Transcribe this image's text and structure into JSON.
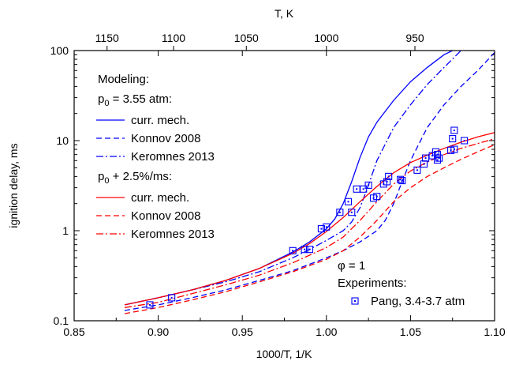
{
  "chart_data": {
    "type": "line",
    "xlabel": "1000/T, 1/K",
    "ylabel": "ignition delay, ms",
    "top_axis_label": "T, K",
    "xlim": [
      0.85,
      1.1
    ],
    "ylim": [
      0.1,
      100
    ],
    "y_scale": "log",
    "x_ticks": [
      "0.85",
      "0.90",
      "0.95",
      "1.00",
      "1.05",
      "1.10"
    ],
    "y_ticks": [
      "0.1",
      "1",
      "10",
      "100"
    ],
    "top_ticks": [
      "1150",
      "1100",
      "1050",
      "1000",
      "950"
    ],
    "grid": false,
    "legend": {
      "placement": "top-left",
      "modeling_header": "Modeling:",
      "group1_header": "p0 = 3.55 atm:",
      "group1_p": "p",
      "group1_sub": "0",
      "group1_rest": " = 3.55 atm:",
      "group2_header": "p0 + 2.5%/ms:",
      "group2_p": "p",
      "group2_sub": "0",
      "group2_rest": " + 2.5%/ms:",
      "phi_label": "φ = 1",
      "experiments_header": "Experiments:",
      "items": [
        {
          "label": "curr. mech.",
          "color": "#0000ff",
          "style": "solid"
        },
        {
          "label": "Konnov 2008",
          "color": "#0000ff",
          "style": "dashed"
        },
        {
          "label": "Keromnes 2013",
          "color": "#0000ff",
          "style": "dashdot"
        },
        {
          "label": "curr. mech.",
          "color": "#ff0000",
          "style": "solid"
        },
        {
          "label": "Konnov 2008",
          "color": "#ff0000",
          "style": "dashed"
        },
        {
          "label": "Keromnes 2013",
          "color": "#ff0000",
          "style": "dashdot"
        },
        {
          "label": "Pang, 3.4-3.7 atm",
          "color": "#0000ff",
          "style": "marker"
        }
      ]
    },
    "series": [
      {
        "name": "curr. mech.",
        "group": "p0 = 3.55 atm",
        "color": "#0000ff",
        "style": "solid",
        "x": [
          0.88,
          0.9,
          0.92,
          0.94,
          0.96,
          0.98,
          0.99,
          1.0,
          1.005,
          1.01,
          1.015,
          1.02,
          1.025,
          1.03,
          1.04,
          1.05,
          1.06,
          1.07,
          1.075
        ],
        "y": [
          0.15,
          0.18,
          0.22,
          0.28,
          0.38,
          0.58,
          0.75,
          1.05,
          1.35,
          2.0,
          3.5,
          6.5,
          11,
          16,
          28,
          45,
          65,
          90,
          100
        ]
      },
      {
        "name": "Konnov 2008",
        "group": "p0 = 3.55 atm",
        "color": "#0000ff",
        "style": "dashed",
        "x": [
          0.88,
          0.9,
          0.92,
          0.94,
          0.96,
          0.98,
          1.0,
          1.01,
          1.02,
          1.03,
          1.035,
          1.04,
          1.045,
          1.05,
          1.06,
          1.07,
          1.08,
          1.09,
          1.1
        ],
        "y": [
          0.13,
          0.15,
          0.18,
          0.22,
          0.28,
          0.36,
          0.5,
          0.6,
          0.75,
          1.0,
          1.3,
          2.0,
          3.5,
          6.0,
          14,
          25,
          40,
          60,
          95
        ]
      },
      {
        "name": "Keromnes 2013",
        "group": "p0 = 3.55 atm",
        "color": "#0000ff",
        "style": "dashdot",
        "x": [
          0.88,
          0.9,
          0.92,
          0.94,
          0.96,
          0.98,
          0.99,
          1.0,
          1.01,
          1.015,
          1.02,
          1.025,
          1.03,
          1.04,
          1.05,
          1.06,
          1.07,
          1.08
        ],
        "y": [
          0.15,
          0.18,
          0.22,
          0.27,
          0.35,
          0.5,
          0.62,
          0.78,
          1.0,
          1.25,
          1.8,
          3.2,
          6.0,
          14,
          25,
          42,
          65,
          100
        ]
      },
      {
        "name": "curr. mech.",
        "group": "p0 + 2.5%/ms",
        "color": "#ff0000",
        "style": "solid",
        "x": [
          0.88,
          0.9,
          0.92,
          0.94,
          0.96,
          0.98,
          0.99,
          1.0,
          1.01,
          1.02,
          1.03,
          1.04,
          1.05,
          1.06,
          1.07,
          1.08,
          1.09,
          1.1
        ],
        "y": [
          0.15,
          0.18,
          0.22,
          0.28,
          0.38,
          0.56,
          0.72,
          0.98,
          1.4,
          2.1,
          3.1,
          4.4,
          5.7,
          6.9,
          8.2,
          9.6,
          11,
          12.3
        ]
      },
      {
        "name": "Konnov 2008",
        "group": "p0 + 2.5%/ms",
        "color": "#ff0000",
        "style": "dashed",
        "x": [
          0.88,
          0.9,
          0.92,
          0.94,
          0.96,
          0.98,
          1.0,
          1.01,
          1.02,
          1.03,
          1.04,
          1.05,
          1.06,
          1.07,
          1.08,
          1.09,
          1.1
        ],
        "y": [
          0.12,
          0.14,
          0.17,
          0.21,
          0.27,
          0.35,
          0.48,
          0.6,
          0.85,
          1.3,
          2.1,
          3.0,
          4.0,
          5.0,
          6.2,
          7.5,
          9.0
        ]
      },
      {
        "name": "Keromnes 2013",
        "group": "p0 + 2.5%/ms",
        "color": "#ff0000",
        "style": "dashdot",
        "x": [
          0.88,
          0.9,
          0.92,
          0.94,
          0.96,
          0.98,
          1.0,
          1.01,
          1.02,
          1.03,
          1.04,
          1.05,
          1.06,
          1.07,
          1.08,
          1.09,
          1.1
        ],
        "y": [
          0.14,
          0.16,
          0.2,
          0.25,
          0.32,
          0.44,
          0.65,
          0.85,
          1.3,
          2.1,
          3.3,
          4.6,
          5.8,
          7.0,
          8.2,
          9.3,
          10.5
        ]
      }
    ],
    "experiments": {
      "name": "Pang, 3.4-3.7 atm",
      "color": "#0000ff",
      "points": [
        [
          0.895,
          0.15
        ],
        [
          0.908,
          0.18
        ],
        [
          0.98,
          0.6
        ],
        [
          0.987,
          0.62
        ],
        [
          0.99,
          0.62
        ],
        [
          0.997,
          1.05
        ],
        [
          1.0,
          1.1
        ],
        [
          1.008,
          1.6
        ],
        [
          1.013,
          2.1
        ],
        [
          1.015,
          1.6
        ],
        [
          1.018,
          2.9
        ],
        [
          1.022,
          2.9
        ],
        [
          1.025,
          3.2
        ],
        [
          1.028,
          2.3
        ],
        [
          1.03,
          2.4
        ],
        [
          1.034,
          3.3
        ],
        [
          1.036,
          3.5
        ],
        [
          1.037,
          4.0
        ],
        [
          1.044,
          3.7
        ],
        [
          1.045,
          3.6
        ],
        [
          1.054,
          4.7
        ],
        [
          1.058,
          5.5
        ],
        [
          1.059,
          6.4
        ],
        [
          1.063,
          6.8
        ],
        [
          1.065,
          7.5
        ],
        [
          1.066,
          7.0
        ],
        [
          1.066,
          6.1
        ],
        [
          1.067,
          6.4
        ],
        [
          1.074,
          7.8
        ],
        [
          1.076,
          8.0
        ],
        [
          1.075,
          10.5
        ],
        [
          1.076,
          13.0
        ],
        [
          1.082,
          10.0
        ]
      ]
    }
  }
}
